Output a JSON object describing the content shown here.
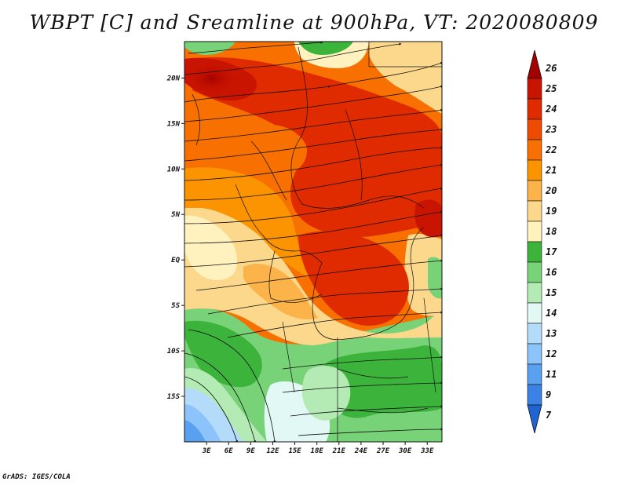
{
  "title": "WBPT [C] and Sreamline at 900hPa, VT: 2020080809",
  "credit": "GrADS: IGES/COLA",
  "map": {
    "variable": "Wet-bulb potential temperature",
    "units": "C",
    "level": "900hPa",
    "valid_time": "2020080809",
    "lon_range": [
      0,
      35
    ],
    "lat_range": [
      -20,
      24
    ],
    "lat_ticks": [
      {
        "value": 20,
        "label": "20N"
      },
      {
        "value": 15,
        "label": "15N"
      },
      {
        "value": 10,
        "label": "10N"
      },
      {
        "value": 5,
        "label": "5N"
      },
      {
        "value": 0,
        "label": "EQ"
      },
      {
        "value": -5,
        "label": "5S"
      },
      {
        "value": -10,
        "label": "10S"
      },
      {
        "value": -15,
        "label": "15S"
      }
    ],
    "lon_ticks": [
      {
        "value": 3,
        "label": "3E"
      },
      {
        "value": 6,
        "label": "6E"
      },
      {
        "value": 9,
        "label": "9E"
      },
      {
        "value": 12,
        "label": "12E"
      },
      {
        "value": 15,
        "label": "15E"
      },
      {
        "value": 18,
        "label": "18E"
      },
      {
        "value": 21,
        "label": "21E"
      },
      {
        "value": 24,
        "label": "24E"
      },
      {
        "value": 27,
        "label": "27E"
      },
      {
        "value": 30,
        "label": "30E"
      },
      {
        "value": 33,
        "label": "33E"
      }
    ]
  },
  "colorbar": {
    "labels": [
      "26",
      "25",
      "24",
      "23",
      "22",
      "21",
      "20",
      "19",
      "18",
      "17",
      "16",
      "15",
      "14",
      "13",
      "12",
      "11",
      "9",
      "7"
    ],
    "colors": [
      "#a50000",
      "#c81400",
      "#e02a00",
      "#ee4a00",
      "#f77000",
      "#fb9400",
      "#fbb34a",
      "#fcd88c",
      "#fff2bf",
      "#3cb43c",
      "#78d278",
      "#b4ebb4",
      "#e1f8f5",
      "#b4dcfa",
      "#8cc3fa",
      "#5aa0f0",
      "#3c82e6",
      "#1e64d2"
    ]
  }
}
